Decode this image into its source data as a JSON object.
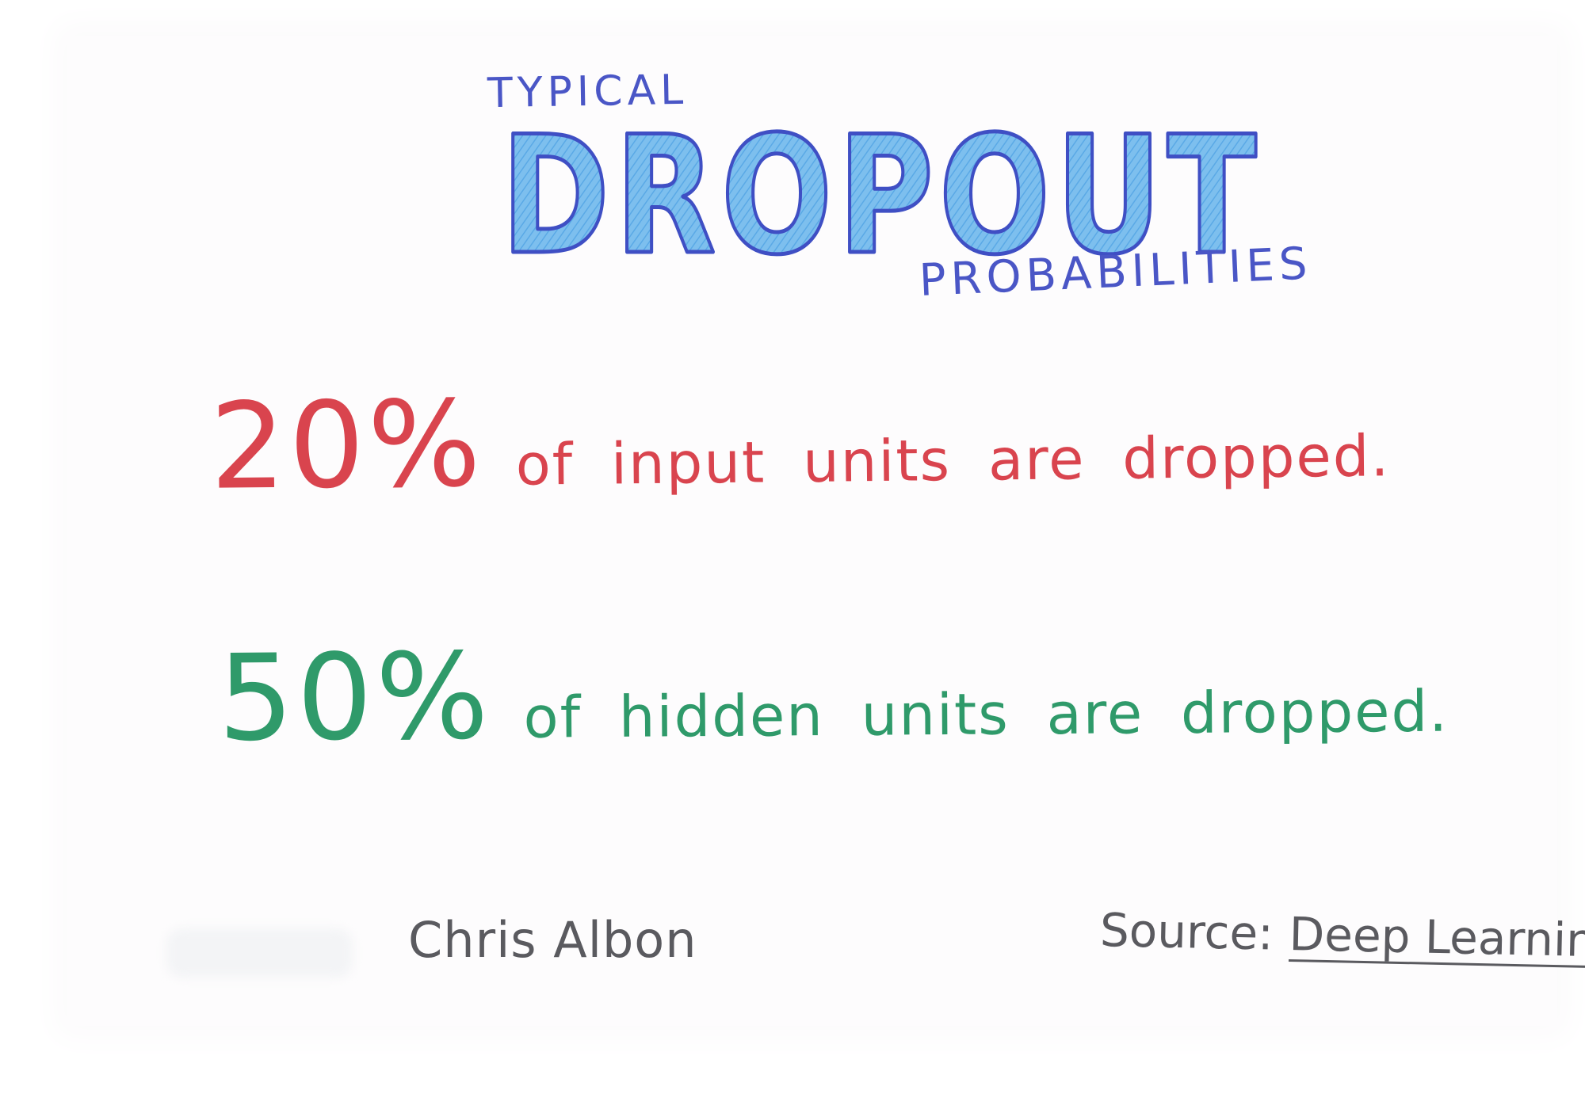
{
  "title": {
    "top": "TYPICAL",
    "main": "DROPOUT",
    "bottom": "PROBABILITIES"
  },
  "lines": [
    {
      "percent": "20%",
      "text": "of input units are dropped."
    },
    {
      "percent": "50%",
      "text": "of hidden units are dropped."
    }
  ],
  "author": "Chris Albon",
  "source": {
    "label": "Source:",
    "book": "Deep Learning"
  },
  "colors": {
    "title_blue": "#4a56c6",
    "title_fill": "#6fb6e9",
    "red": "#d9444e",
    "green": "#2f9a6a",
    "gray": "#5a5a5f"
  }
}
